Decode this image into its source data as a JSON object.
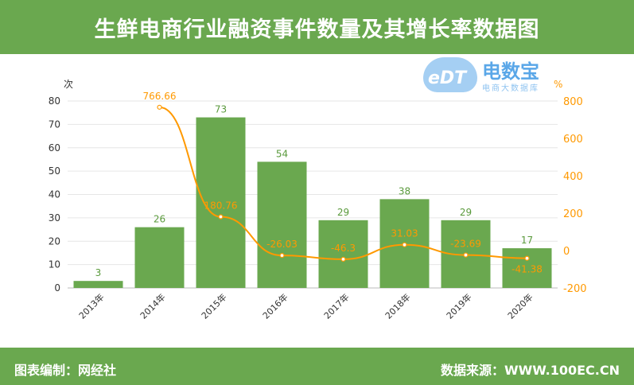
{
  "title": "生鲜电商行业融资事件数量及其增长率数据图",
  "footer": {
    "left": "图表编制：网经社",
    "right": "数据来源：WWW.100EC.CN"
  },
  "logo": {
    "name": "电数宝",
    "sub": "电商大数据库",
    "mark": "eDT"
  },
  "colors": {
    "bar": "#6aa84f",
    "line": "#ff9900",
    "header": "#6aa84f"
  },
  "chart_data": {
    "type": "bar+line",
    "categories": [
      "2013年",
      "2014年",
      "2015年",
      "2016年",
      "2017年",
      "2018年",
      "2019年",
      "2020年"
    ],
    "series": [
      {
        "name": "融资事件数量",
        "axis": "left",
        "type": "bar",
        "values": [
          3,
          26,
          73,
          54,
          29,
          38,
          29,
          17
        ]
      },
      {
        "name": "增长率",
        "axis": "right",
        "type": "line",
        "values": [
          null,
          766.66,
          180.76,
          -26.03,
          -46.3,
          31.03,
          -23.69,
          -41.38
        ]
      }
    ],
    "ylabel": "次",
    "ylim": [
      0,
      80
    ],
    "yticks": [
      0,
      10,
      20,
      30,
      40,
      50,
      60,
      70,
      80
    ],
    "y2label": "%",
    "y2lim": [
      -200,
      800
    ],
    "y2ticks": [
      -200,
      0,
      200,
      400,
      600,
      800
    ],
    "grid": true
  }
}
